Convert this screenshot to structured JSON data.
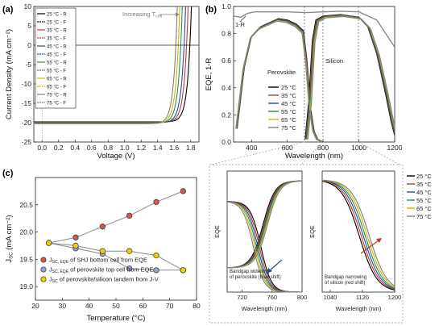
{
  "colors": {
    "25": "#000000",
    "35": "#c0392b",
    "45": "#1f4e9c",
    "55": "#2e8b57",
    "65": "#d4b400",
    "75": "#7f7f7f",
    "bandgap_blue_arrow": "#1f4e9c",
    "bandgap_red_arrow": "#c0392b",
    "markers": {
      "red": "#d9534f",
      "blue": "#8fa3d8",
      "yellow": "#f0d000"
    }
  },
  "chart_data": [
    {
      "panel": "(a)",
      "type": "line",
      "xlabel": "Voltage (V)",
      "ylabel": "Current Density (mA cm⁻²)",
      "xlim": [
        -0.1,
        1.9
      ],
      "ylim": [
        -25,
        10
      ],
      "xticks": [
        "0.0",
        "0.2",
        "0.4",
        "0.6",
        "0.8",
        "1.0",
        "1.2",
        "1.4",
        "1.6",
        "1.8"
      ],
      "yticks": [
        "10",
        "5",
        "0",
        "-5",
        "-10",
        "-15",
        "-20",
        "-25"
      ],
      "annotation": "Increasing T",
      "annotation_sub": "cell",
      "legend": [
        "25 °C - R",
        "25 °C - F",
        "35 °C - R",
        "35 °C - F",
        "45 °C - R",
        "45 °C - F",
        "55 °C - R",
        "55 °C - F",
        "65 °C - R",
        "65 °C - F",
        "75 °C - R",
        "75 °C - F"
      ],
      "series": [
        {
          "name": "25 °C - R",
          "temp": "25",
          "jsc": -19.8,
          "voc": 1.79
        },
        {
          "name": "35 °C - R",
          "temp": "35",
          "jsc": -19.9,
          "voc": 1.75
        },
        {
          "name": "45 °C - R",
          "temp": "45",
          "jsc": -20.0,
          "voc": 1.72
        },
        {
          "name": "55 °C - R",
          "temp": "55",
          "jsc": -20.1,
          "voc": 1.68
        },
        {
          "name": "65 °C - R",
          "temp": "65",
          "jsc": -20.2,
          "voc": 1.65
        },
        {
          "name": "75 °C - R",
          "temp": "75",
          "jsc": -20.3,
          "voc": 1.62
        }
      ]
    },
    {
      "panel": "(b)",
      "type": "line",
      "xlabel": "Wavelength (nm)",
      "ylabel": "EQE, 1-R",
      "xlim": [
        300,
        1200
      ],
      "ylim": [
        0,
        1.0
      ],
      "xticks": [
        "400",
        "600",
        "800",
        "1000",
        "1200"
      ],
      "yticks": [
        "0.0",
        "0.2",
        "0.4",
        "0.6",
        "0.8",
        "1.0"
      ],
      "labels": [
        "1-R",
        "Perovskite",
        "Silicon"
      ],
      "legend": [
        "25 °C",
        "35 °C",
        "45 °C",
        "55 °C",
        "65 °C",
        "75 °C"
      ],
      "one_minus_r": [
        [
          300,
          0.93
        ],
        [
          340,
          0.92
        ],
        [
          380,
          0.95
        ],
        [
          420,
          0.96
        ],
        [
          500,
          0.96
        ],
        [
          600,
          0.96
        ],
        [
          700,
          0.955
        ],
        [
          800,
          0.96
        ],
        [
          900,
          0.965
        ],
        [
          1000,
          0.96
        ],
        [
          1100,
          0.9
        ],
        [
          1150,
          0.8
        ],
        [
          1200,
          0.7
        ]
      ],
      "perovskite_eqe": [
        [
          320,
          0.1
        ],
        [
          360,
          0.55
        ],
        [
          400,
          0.78
        ],
        [
          450,
          0.85
        ],
        [
          500,
          0.88
        ],
        [
          550,
          0.91
        ],
        [
          600,
          0.9
        ],
        [
          650,
          0.87
        ],
        [
          690,
          0.82
        ],
        [
          710,
          0.6
        ],
        [
          730,
          0.25
        ],
        [
          750,
          0.08
        ],
        [
          770,
          0.02
        ],
        [
          800,
          0.0
        ]
      ],
      "silicon_eqe": [
        [
          700,
          0.02
        ],
        [
          720,
          0.3
        ],
        [
          740,
          0.75
        ],
        [
          760,
          0.9
        ],
        [
          800,
          0.93
        ],
        [
          900,
          0.94
        ],
        [
          1000,
          0.92
        ],
        [
          1050,
          0.85
        ],
        [
          1100,
          0.65
        ],
        [
          1150,
          0.35
        ],
        [
          1180,
          0.15
        ],
        [
          1200,
          0.05
        ]
      ]
    },
    {
      "panel": "(c)",
      "type": "scatter",
      "xlabel": "Temperature (°C)",
      "ylabel": "J",
      "ylabel_sub": "SC",
      "ylabel_unit": " (mA cm⁻²)",
      "xlim": [
        20,
        80
      ],
      "ylim": [
        18.75,
        21.0
      ],
      "xticks": [
        "20",
        "30",
        "40",
        "50",
        "60",
        "70",
        "80"
      ],
      "yticks": [
        "19.0",
        "19.5",
        "20.0",
        "20.5"
      ],
      "x": [
        25,
        35,
        45,
        55,
        65,
        75
      ],
      "series": [
        {
          "name": "J_SC, EQE of SHJ bottom cell from EQE",
          "legend_main": "J",
          "legend_sub": "SC, EQE",
          "legend_rest": " of SHJ bottom cell from EQE",
          "marker": "red",
          "values": [
            19.8,
            19.9,
            20.1,
            20.3,
            20.55,
            20.75
          ]
        },
        {
          "name": "J_SC, EQE of perovskite top cell from EQE",
          "legend_main": "J",
          "legend_sub": "SC, EQE",
          "legend_rest": " of perovskite top cell from EQE",
          "marker": "blue",
          "values": [
            19.8,
            19.7,
            19.6,
            19.33,
            19.3,
            19.3
          ]
        },
        {
          "name": "J_SC of perovskite/silicon tandem from J-V",
          "legend_main": "J",
          "legend_sub": "SC",
          "legend_rest": " of perovskite/silicon tandem from J-V",
          "marker": "yellow",
          "values": [
            19.8,
            19.75,
            19.65,
            19.65,
            19.57,
            19.3
          ]
        }
      ]
    },
    {
      "panel": "inset-left",
      "type": "line",
      "xlabel": "Wavelength (nm)",
      "ylabel": "EQE",
      "xlim": [
        700,
        800
      ],
      "xticks": [
        "720",
        "760",
        "800"
      ],
      "annotation": [
        "Bandgap widening",
        "of perovskite (blue shift)"
      ]
    },
    {
      "panel": "inset-right",
      "type": "line",
      "xlabel": "Wavelength (nm)",
      "ylabel": "EQE",
      "xlim": [
        1020,
        1200
      ],
      "xticks": [
        "1040",
        "1120",
        "1200"
      ],
      "annotation": [
        "Bandgap narrowing",
        "of silicon (red shift)"
      ],
      "legend": [
        "25 °C",
        "35 °C",
        "45 °C",
        "55 °C",
        "65 °C",
        "75 °C"
      ]
    }
  ]
}
